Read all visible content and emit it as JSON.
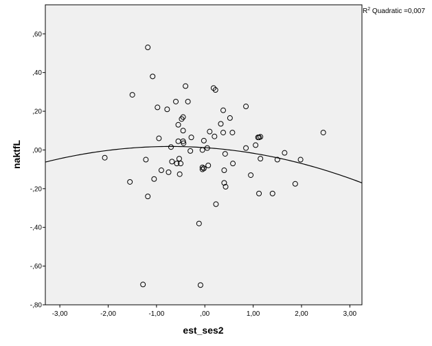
{
  "chart_data": {
    "type": "scatter",
    "title": "",
    "xlabel": "est_ses2",
    "ylabel": "naktfL",
    "xlim": [
      -3.3,
      3.25
    ],
    "ylim": [
      -0.8,
      0.75
    ],
    "x_ticks": [
      -3.0,
      -2.0,
      -1.0,
      0.0,
      1.0,
      2.0,
      3.0
    ],
    "x_tick_labels": [
      "-3,00",
      "-2,00",
      "-1,00",
      ",00",
      "1,00",
      "2,00",
      "3,00"
    ],
    "y_ticks": [
      0.6,
      0.4,
      0.2,
      0.0,
      -0.2,
      -0.4,
      -0.6,
      -0.8
    ],
    "y_tick_labels": [
      ",60",
      ",40",
      ",20",
      ",00",
      "-,20",
      "-,40",
      "-,60",
      "-,80"
    ],
    "grid": false,
    "background_color": "#f0f0f0",
    "marker": "open-circle",
    "fit": {
      "type": "quadratic",
      "label_prefix": "R",
      "label_sup": "2",
      "label_text": " Quadratic =0,007",
      "a": 0.012,
      "b": -0.017,
      "c": -0.012
    },
    "points": [
      {
        "x": -1.18,
        "y": 0.53
      },
      {
        "x": -1.08,
        "y": 0.38
      },
      {
        "x": -1.5,
        "y": 0.285
      },
      {
        "x": -0.4,
        "y": 0.33
      },
      {
        "x": 0.18,
        "y": 0.32
      },
      {
        "x": 0.22,
        "y": 0.31
      },
      {
        "x": -0.35,
        "y": 0.25
      },
      {
        "x": -0.6,
        "y": 0.25
      },
      {
        "x": -0.98,
        "y": 0.22
      },
      {
        "x": -0.78,
        "y": 0.21
      },
      {
        "x": 0.38,
        "y": 0.205
      },
      {
        "x": 0.85,
        "y": 0.225
      },
      {
        "x": -0.45,
        "y": 0.17
      },
      {
        "x": -0.48,
        "y": 0.16
      },
      {
        "x": 0.52,
        "y": 0.165
      },
      {
        "x": -0.55,
        "y": 0.13
      },
      {
        "x": 0.33,
        "y": 0.135
      },
      {
        "x": -0.45,
        "y": 0.1
      },
      {
        "x": 0.1,
        "y": 0.095
      },
      {
        "x": 0.38,
        "y": 0.09
      },
      {
        "x": 0.57,
        "y": 0.09
      },
      {
        "x": 2.45,
        "y": 0.09
      },
      {
        "x": -0.28,
        "y": 0.065
      },
      {
        "x": 0.2,
        "y": 0.07
      },
      {
        "x": -0.95,
        "y": 0.06
      },
      {
        "x": 1.1,
        "y": 0.065
      },
      {
        "x": 1.12,
        "y": 0.065
      },
      {
        "x": 1.15,
        "y": 0.068
      },
      {
        "x": -0.55,
        "y": 0.045
      },
      {
        "x": -0.45,
        "y": 0.045
      },
      {
        "x": -0.44,
        "y": 0.035
      },
      {
        "x": -0.02,
        "y": 0.048
      },
      {
        "x": 1.05,
        "y": 0.025
      },
      {
        "x": -0.7,
        "y": 0.015
      },
      {
        "x": 0.05,
        "y": 0.01
      },
      {
        "x": 0.85,
        "y": 0.01
      },
      {
        "x": -0.3,
        "y": -0.005
      },
      {
        "x": -0.05,
        "y": 0.0
      },
      {
        "x": 0.42,
        "y": -0.02
      },
      {
        "x": 1.65,
        "y": -0.015
      },
      {
        "x": -2.07,
        "y": -0.04
      },
      {
        "x": -1.22,
        "y": -0.05
      },
      {
        "x": -0.53,
        "y": -0.045
      },
      {
        "x": 1.15,
        "y": -0.045
      },
      {
        "x": 1.5,
        "y": -0.05
      },
      {
        "x": 1.98,
        "y": -0.05
      },
      {
        "x": -0.68,
        "y": -0.06
      },
      {
        "x": -0.58,
        "y": -0.07
      },
      {
        "x": -0.5,
        "y": -0.07
      },
      {
        "x": 0.58,
        "y": -0.07
      },
      {
        "x": 0.07,
        "y": -0.08
      },
      {
        "x": -0.05,
        "y": -0.09
      },
      {
        "x": -0.02,
        "y": -0.095
      },
      {
        "x": -0.05,
        "y": -0.1
      },
      {
        "x": -0.9,
        "y": -0.105
      },
      {
        "x": 0.4,
        "y": -0.105
      },
      {
        "x": -0.75,
        "y": -0.115
      },
      {
        "x": -0.52,
        "y": -0.125
      },
      {
        "x": 0.95,
        "y": -0.13
      },
      {
        "x": -1.05,
        "y": -0.15
      },
      {
        "x": -1.55,
        "y": -0.165
      },
      {
        "x": 0.4,
        "y": -0.17
      },
      {
        "x": 1.87,
        "y": -0.175
      },
      {
        "x": 0.43,
        "y": -0.19
      },
      {
        "x": 1.12,
        "y": -0.225
      },
      {
        "x": 1.4,
        "y": -0.225
      },
      {
        "x": -1.18,
        "y": -0.24
      },
      {
        "x": 0.23,
        "y": -0.28
      },
      {
        "x": -0.12,
        "y": -0.38
      },
      {
        "x": -1.28,
        "y": -0.695
      },
      {
        "x": -0.09,
        "y": -0.698
      }
    ]
  }
}
